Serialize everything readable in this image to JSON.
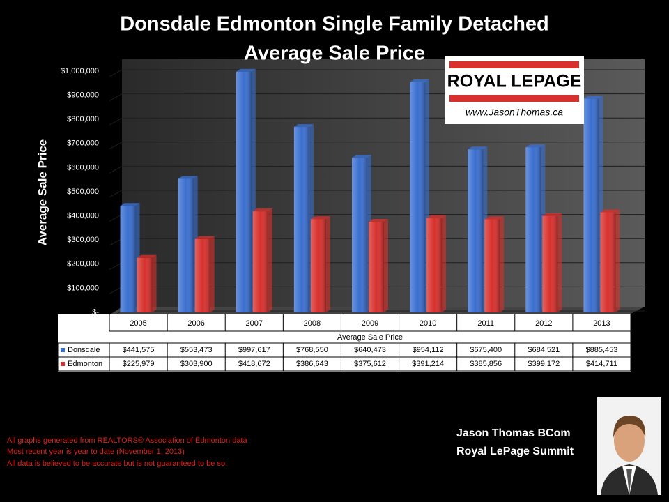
{
  "chart_data": {
    "type": "bar",
    "title": "Donsdale Edmonton Single Family Detached",
    "subtitle": "Average Sale Price",
    "y_label": "Average Sale Price",
    "x_label": "Average Sale Price",
    "categories": [
      "2005",
      "2006",
      "2007",
      "2008",
      "2009",
      "2010",
      "2011",
      "2012",
      "2013"
    ],
    "series": [
      {
        "name": "Donsdale",
        "color": "#3a6fd0",
        "values": [
          441575,
          553473,
          997617,
          768550,
          640473,
          954112,
          675400,
          684521,
          885453
        ],
        "value_labels": [
          "$441,575",
          "$553,473",
          "$997,617",
          "$768,550",
          "$640,473",
          "$954,112",
          "$675,400",
          "$684,521",
          "$885,453"
        ]
      },
      {
        "name": "Edmonton",
        "color": "#d8302c",
        "values": [
          225979,
          303900,
          418672,
          386643,
          375612,
          391214,
          385856,
          399172,
          414711
        ],
        "value_labels": [
          "$225,979",
          "$303,900",
          "$418,672",
          "$386,643",
          "$375,612",
          "$391,214",
          "$385,856",
          "$399,172",
          "$414,711"
        ]
      }
    ],
    "ylim": [
      0,
      1000000
    ],
    "yticks": [
      {
        "value": 0,
        "label": "$-"
      },
      {
        "value": 100000,
        "label": "$100,000"
      },
      {
        "value": 200000,
        "label": "$200,000"
      },
      {
        "value": 300000,
        "label": "$300,000"
      },
      {
        "value": 400000,
        "label": "$400,000"
      },
      {
        "value": 500000,
        "label": "$500,000"
      },
      {
        "value": 600000,
        "label": "$600,000"
      },
      {
        "value": 700000,
        "label": "$700,000"
      },
      {
        "value": 800000,
        "label": "$800,000"
      },
      {
        "value": 900000,
        "label": "$900,000"
      },
      {
        "value": 1000000,
        "label": "$1,000,000"
      }
    ],
    "grid": true
  },
  "logo": {
    "brand": "ROYAL LEPAGE",
    "website": "www.JasonThomas.ca"
  },
  "notes": [
    "All graphs generated from REALTORS® Association of Edmonton data",
    "Most recent year is year to date (November 1, 2013)",
    "All data is believed to be accurate but is not guaranteed to be so."
  ],
  "signature": {
    "name": "Jason Thomas BCom",
    "company": "Royal LePage Summit"
  }
}
